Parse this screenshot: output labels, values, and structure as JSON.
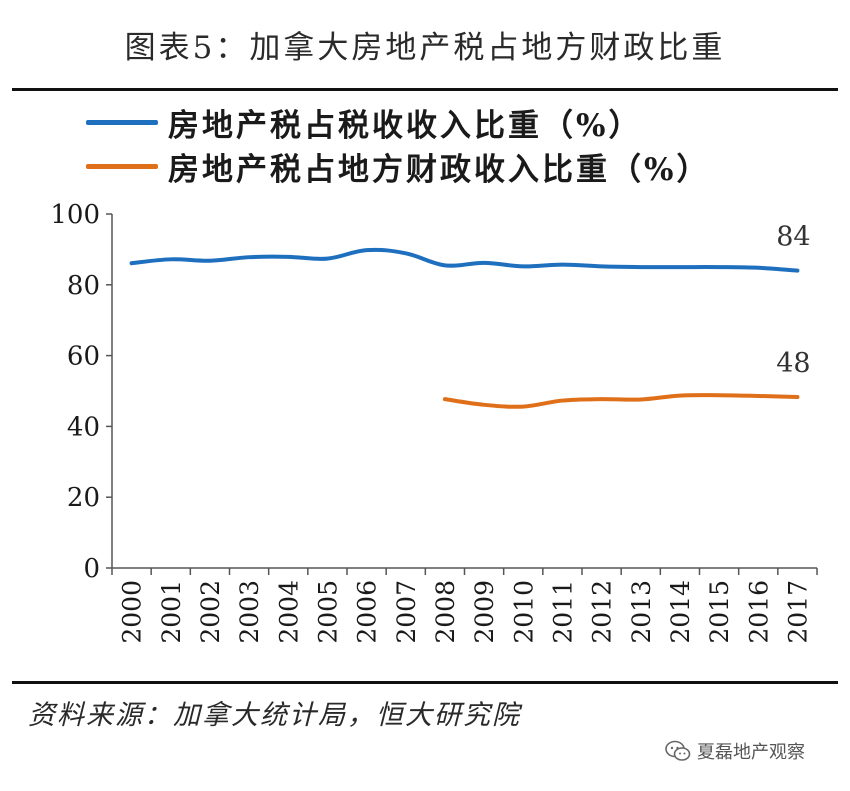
{
  "header": {
    "title": "图表5：加拿大房地产税占地方财政比重"
  },
  "chart_data": {
    "type": "line",
    "categories": [
      "2000",
      "2001",
      "2002",
      "2003",
      "2004",
      "2005",
      "2006",
      "2007",
      "2008",
      "2009",
      "2010",
      "2011",
      "2012",
      "2013",
      "2014",
      "2015",
      "2016",
      "2017"
    ],
    "ylim": [
      0,
      100
    ],
    "yticks": [
      0,
      20,
      40,
      60,
      80,
      100
    ],
    "grid": false,
    "legend_position": "top-left",
    "series": [
      {
        "name": "房地产税占税收收入比重（%）",
        "color": "#1f6fbf",
        "values": [
          86.1,
          87.2,
          86.8,
          87.8,
          87.9,
          87.4,
          89.8,
          88.9,
          85.5,
          86.2,
          85.2,
          85.7,
          85.2,
          85.0,
          85.0,
          85.0,
          84.8,
          84.0
        ],
        "end_label": "84"
      },
      {
        "name": "房地产税占地方财政收入比重（%）",
        "color": "#e06f1a",
        "values": [
          null,
          null,
          null,
          null,
          null,
          null,
          null,
          null,
          47.7,
          46.1,
          45.6,
          47.3,
          47.7,
          47.6,
          48.7,
          48.8,
          48.6,
          48.3
        ],
        "end_label": "48"
      }
    ]
  },
  "footer": {
    "source": "资料来源：加拿大统计局，恒大研究院",
    "watermark": "夏磊地产观察",
    "watermark_icon": "wechat-icon"
  }
}
